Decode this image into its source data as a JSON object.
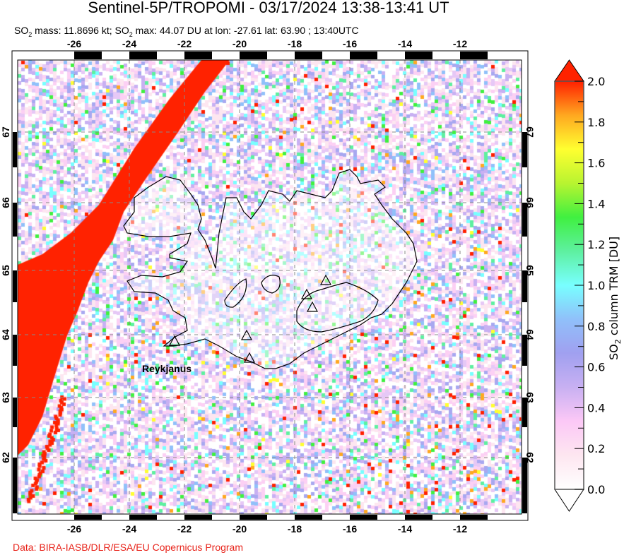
{
  "title": "Sentinel-5P/TROPOMI - 03/17/2024 13:38-13:41 UT",
  "subtitle": {
    "so": "SO",
    "sub": "2",
    "mass_text": " mass: 11.8696 kt; SO",
    "max_text": " max: 44.07 DU at lon: -27.61 lat: 63.90 ; 13:40UTC"
  },
  "map": {
    "lon_ticks": [
      "-26",
      "-24",
      "-22",
      "-20",
      "-18",
      "-16",
      "-14",
      "-12"
    ],
    "lat_ticks": [
      "67",
      "66",
      "65",
      "64",
      "63",
      "62"
    ],
    "place_label": "Reykjanus",
    "volcano_markers": 6,
    "coastline_color": "#000000",
    "plume_color": "#ff2200"
  },
  "colorbar": {
    "label_prefix": "SO",
    "label_sub": "2",
    "label_suffix": " column TRM [DU]",
    "ticks": [
      "0.0",
      "0.2",
      "0.4",
      "0.6",
      "0.8",
      "1.0",
      "1.2",
      "1.4",
      "1.6",
      "1.8",
      "2.0"
    ],
    "min": 0.0,
    "max": 2.0,
    "colors": [
      "#ffffff",
      "#fde6f0",
      "#fcc8f6",
      "#c8b0f2",
      "#a0a0f0",
      "#90c0fa",
      "#78ffff",
      "#5ef0a0",
      "#40f040",
      "#b8f430",
      "#ffff30",
      "#ffa820",
      "#ff2000"
    ]
  },
  "credit": "Data: BIRA-IASB/DLR/ESA/EU Copernicus Program"
}
